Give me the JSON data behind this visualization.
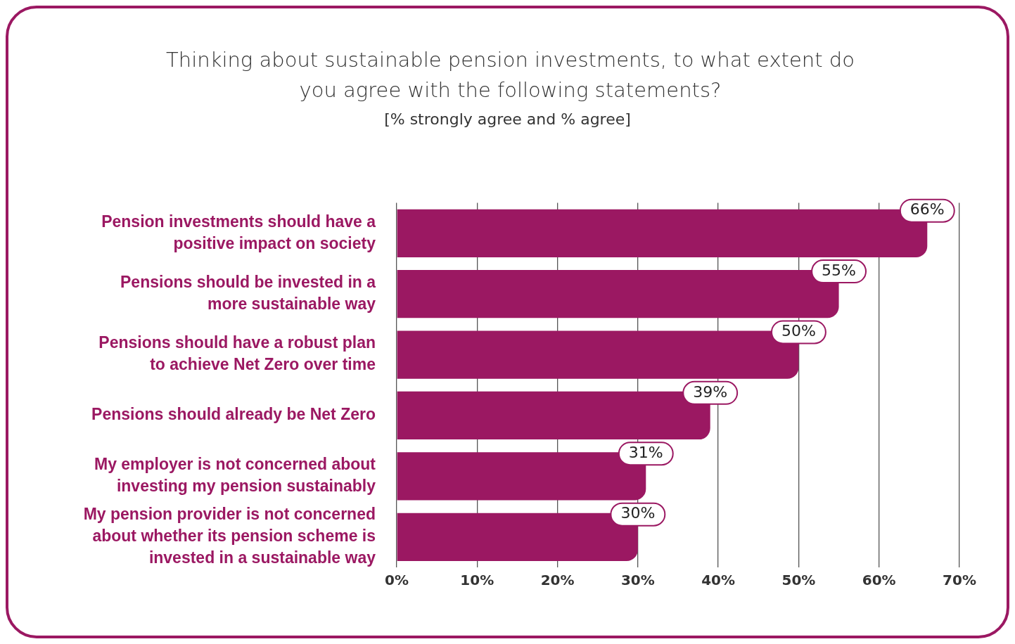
{
  "chart_data": {
    "type": "bar",
    "orientation": "horizontal",
    "title": "Thinking about sustainable pension investments, to what extent do you agree with the following statements?",
    "subtitle": "[% strongly agree and % agree]",
    "categories": [
      "Pension investments should have a positive impact on society",
      "Pensions should be invested in a more sustainable way",
      "Pensions should have a robust plan to achieve Net Zero over time",
      "Pensions should already be Net Zero",
      "My employer is not concerned about investing my pension sustainably",
      "My pension provider is not concerned about whether its pension scheme is invested in a sustainable way"
    ],
    "values": [
      66,
      55,
      50,
      39,
      31,
      30
    ],
    "value_labels": [
      "66%",
      "55%",
      "50%",
      "39%",
      "31%",
      "30%"
    ],
    "color": "#9b1862",
    "xlim": [
      0,
      70
    ],
    "xticks": [
      {
        "value": 0,
        "label": "0%"
      },
      {
        "value": 10,
        "label": "10%"
      },
      {
        "value": 20,
        "label": "20%"
      },
      {
        "value": 30,
        "label": "30%"
      },
      {
        "value": 40,
        "label": "40%"
      },
      {
        "value": 50,
        "label": "50%"
      },
      {
        "value": 60,
        "label": "60%"
      },
      {
        "value": 70,
        "label": "70%"
      }
    ],
    "grid": "x",
    "legend": false
  }
}
